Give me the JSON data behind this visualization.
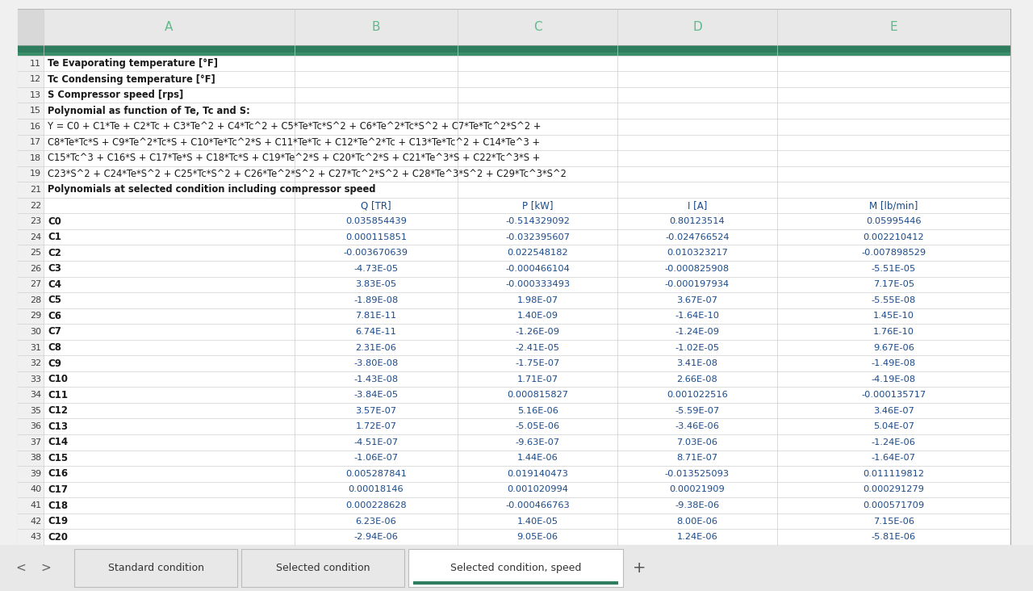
{
  "col_headers": [
    "A",
    "B",
    "C",
    "D",
    "E"
  ],
  "header_text_color": "#5fba8a",
  "dark_green": "#2e7d5e",
  "mid_green": "#3a8f6a",
  "row_line_color": "#d0d0d0",
  "bg_color": "#f0f0f0",
  "header_bg": "#e8e8e8",
  "white": "#ffffff",
  "selected_tab_underline": "#2e7d5e",
  "special_rows": {
    "11": {
      "col_A": "Te Evaporating temperature [°F]",
      "bold": true
    },
    "12": {
      "col_A": "Tc Condensing temperature [°F]",
      "bold": true
    },
    "13": {
      "col_A": "S Compressor speed [rps]",
      "bold": true
    },
    "15": {
      "col_A": "Polynomial as function of Te, Tc and S:",
      "bold": true
    },
    "16": {
      "col_A": "Y = C0 + C1*Te + C2*Tc + C3*Te^2 + C4*Tc^2 + C5*Te*Tc*S^2 + C6*Te^2*Tc*S^2 + C7*Te*Tc^2*S^2 +",
      "bold": false
    },
    "17": {
      "col_A": "C8*Te*Tc*S + C9*Te^2*Tc*S + C10*Te*Tc^2*S + C11*Te*Tc + C12*Te^2*Tc + C13*Te*Tc^2 + C14*Te^3 +",
      "bold": false
    },
    "18": {
      "col_A": "C15*Tc^3 + C16*S + C17*Te*S + C18*Tc*S + C19*Te^2*S + C20*Tc^2*S + C21*Te^3*S + C22*Tc^3*S +",
      "bold": false
    },
    "19": {
      "col_A": "C23*S^2 + C24*Te*S^2 + C25*Tc*S^2 + C26*Te^2*S^2 + C27*Tc^2*S^2 + C28*Te^3*S^2 + C29*Tc^3*S^2",
      "bold": false
    },
    "21": {
      "col_A": "Polynomials at selected condition including compressor speed",
      "bold": true
    }
  },
  "row22": {
    "B": "Q [TR]",
    "C": "P [kW]",
    "D": "I [A]",
    "E": "M [lb/min]"
  },
  "data_rows": [
    {
      "row_num": "23",
      "label": "C0",
      "B": "0.035854439",
      "C": "-0.514329092",
      "D": "0.80123514",
      "E": "0.05995446"
    },
    {
      "row_num": "24",
      "label": "C1",
      "B": "0.000115851",
      "C": "-0.032395607",
      "D": "-0.024766524",
      "E": "0.002210412"
    },
    {
      "row_num": "25",
      "label": "C2",
      "B": "-0.003670639",
      "C": "0.022548182",
      "D": "0.010323217",
      "E": "-0.007898529"
    },
    {
      "row_num": "26",
      "label": "C3",
      "B": "-4.73E-05",
      "C": "-0.000466104",
      "D": "-0.000825908",
      "E": "-5.51E-05"
    },
    {
      "row_num": "27",
      "label": "C4",
      "B": "3.83E-05",
      "C": "-0.000333493",
      "D": "-0.000197934",
      "E": "7.17E-05"
    },
    {
      "row_num": "28",
      "label": "C5",
      "B": "-1.89E-08",
      "C": "1.98E-07",
      "D": "3.67E-07",
      "E": "-5.55E-08"
    },
    {
      "row_num": "29",
      "label": "C6",
      "B": "7.81E-11",
      "C": "1.40E-09",
      "D": "-1.64E-10",
      "E": "1.45E-10"
    },
    {
      "row_num": "30",
      "label": "C7",
      "B": "6.74E-11",
      "C": "-1.26E-09",
      "D": "-1.24E-09",
      "E": "1.76E-10"
    },
    {
      "row_num": "31",
      "label": "C8",
      "B": "2.31E-06",
      "C": "-2.41E-05",
      "D": "-1.02E-05",
      "E": "9.67E-06"
    },
    {
      "row_num": "32",
      "label": "C9",
      "B": "-3.80E-08",
      "C": "-1.75E-07",
      "D": "3.41E-08",
      "E": "-1.49E-08"
    },
    {
      "row_num": "33",
      "label": "C10",
      "B": "-1.43E-08",
      "C": "1.71E-07",
      "D": "2.66E-08",
      "E": "-4.19E-08"
    },
    {
      "row_num": "34",
      "label": "C11",
      "B": "-3.84E-05",
      "C": "0.000815827",
      "D": "0.001022516",
      "E": "-0.000135717"
    },
    {
      "row_num": "35",
      "label": "C12",
      "B": "3.57E-07",
      "C": "5.16E-06",
      "D": "-5.59E-07",
      "E": "3.46E-07"
    },
    {
      "row_num": "36",
      "label": "C13",
      "B": "1.72E-07",
      "C": "-5.05E-06",
      "D": "-3.46E-06",
      "E": "5.04E-07"
    },
    {
      "row_num": "37",
      "label": "C14",
      "B": "-4.51E-07",
      "C": "-9.63E-07",
      "D": "7.03E-06",
      "E": "-1.24E-06"
    },
    {
      "row_num": "38",
      "label": "C15",
      "B": "-1.06E-07",
      "C": "1.44E-06",
      "D": "8.71E-07",
      "E": "-1.64E-07"
    },
    {
      "row_num": "39",
      "label": "C16",
      "B": "0.005287841",
      "C": "0.019140473",
      "D": "-0.013525093",
      "E": "0.011119812"
    },
    {
      "row_num": "40",
      "label": "C17",
      "B": "0.00018146",
      "C": "0.001020994",
      "D": "0.00021909",
      "E": "0.000291279"
    },
    {
      "row_num": "41",
      "label": "C18",
      "B": "0.000228628",
      "C": "-0.000466763",
      "D": "-9.38E-06",
      "E": "0.000571709"
    },
    {
      "row_num": "42",
      "label": "C19",
      "B": "6.23E-06",
      "C": "1.40E-05",
      "D": "8.00E-06",
      "E": "7.15E-06"
    },
    {
      "row_num": "43",
      "label": "C20",
      "B": "-2.94E-06",
      "C": "9.05E-06",
      "D": "1.24E-06",
      "E": "-5.81E-06"
    }
  ],
  "tabs": [
    "Standard condition",
    "Selected condition",
    "Selected condition, speed"
  ],
  "active_tab": "Selected condition, speed"
}
